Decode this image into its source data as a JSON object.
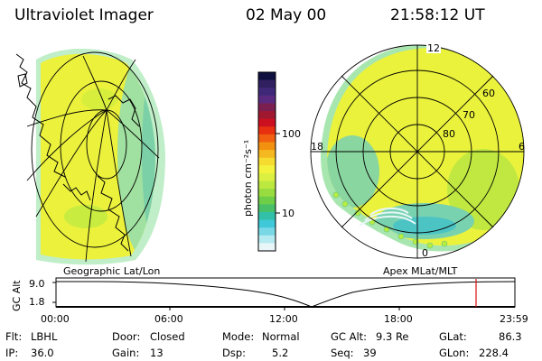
{
  "header": {
    "title": "Ultraviolet Imager",
    "date": "02 May 00",
    "time": "21:58:12 UT"
  },
  "colorbar": {
    "unit_label": "photon cm⁻²s⁻¹",
    "ticks": [
      "100",
      "10"
    ],
    "colors": [
      "#101040",
      "#302060",
      "#402878",
      "#5a2a80",
      "#7a1f50",
      "#a01830",
      "#cc1020",
      "#e83010",
      "#f06010",
      "#f29010",
      "#f6b820",
      "#f7dc30",
      "#f3f23c",
      "#dbf040",
      "#bce840",
      "#98dc40",
      "#6ece48",
      "#48c068",
      "#33c0a8",
      "#3ec8d8",
      "#78d8e6",
      "#b4eaf0",
      "#e8f6f8"
    ]
  },
  "left_map": {
    "label": "Geographic Lat/Lon",
    "colors": {
      "outer": "#a6e8b0",
      "body": "#ecf23c",
      "limb": "#9fe0a0",
      "grid": "#000000"
    }
  },
  "right_map": {
    "label": "Apex MLat/MLT",
    "mlt_labels": {
      "top": "12",
      "left": "18",
      "right": "6",
      "bottom": "0"
    },
    "mlat_labels": [
      "60",
      "70",
      "80"
    ]
  },
  "altitude_plot": {
    "ylabel": "GC Alt",
    "yticks": [
      "9.0",
      "1.8"
    ],
    "xticks": [
      "00:00",
      "06:00",
      "12:00",
      "18:00",
      "23:59"
    ],
    "marker_color": "#d81010"
  },
  "footer": {
    "filter_label": "Flt:",
    "filter_value": "LBHL",
    "ip_label": "IP:",
    "ip_value": "36.0",
    "door_label": "Door:",
    "door_value": "Closed",
    "gain_label": "Gain:",
    "gain_value": "13",
    "mode_label": "Mode:",
    "mode_value": "Normal",
    "dsp_label": "Dsp:",
    "dsp_value": "5.2",
    "gcalt_label": "GC Alt:",
    "gcalt_value": "9.3 Re",
    "seq_label": "Seq:",
    "seq_value": "39",
    "glat_label": "GLat:",
    "glat_value": "86.3",
    "glon_label": "GLon:",
    "glon_value": "228.4"
  }
}
